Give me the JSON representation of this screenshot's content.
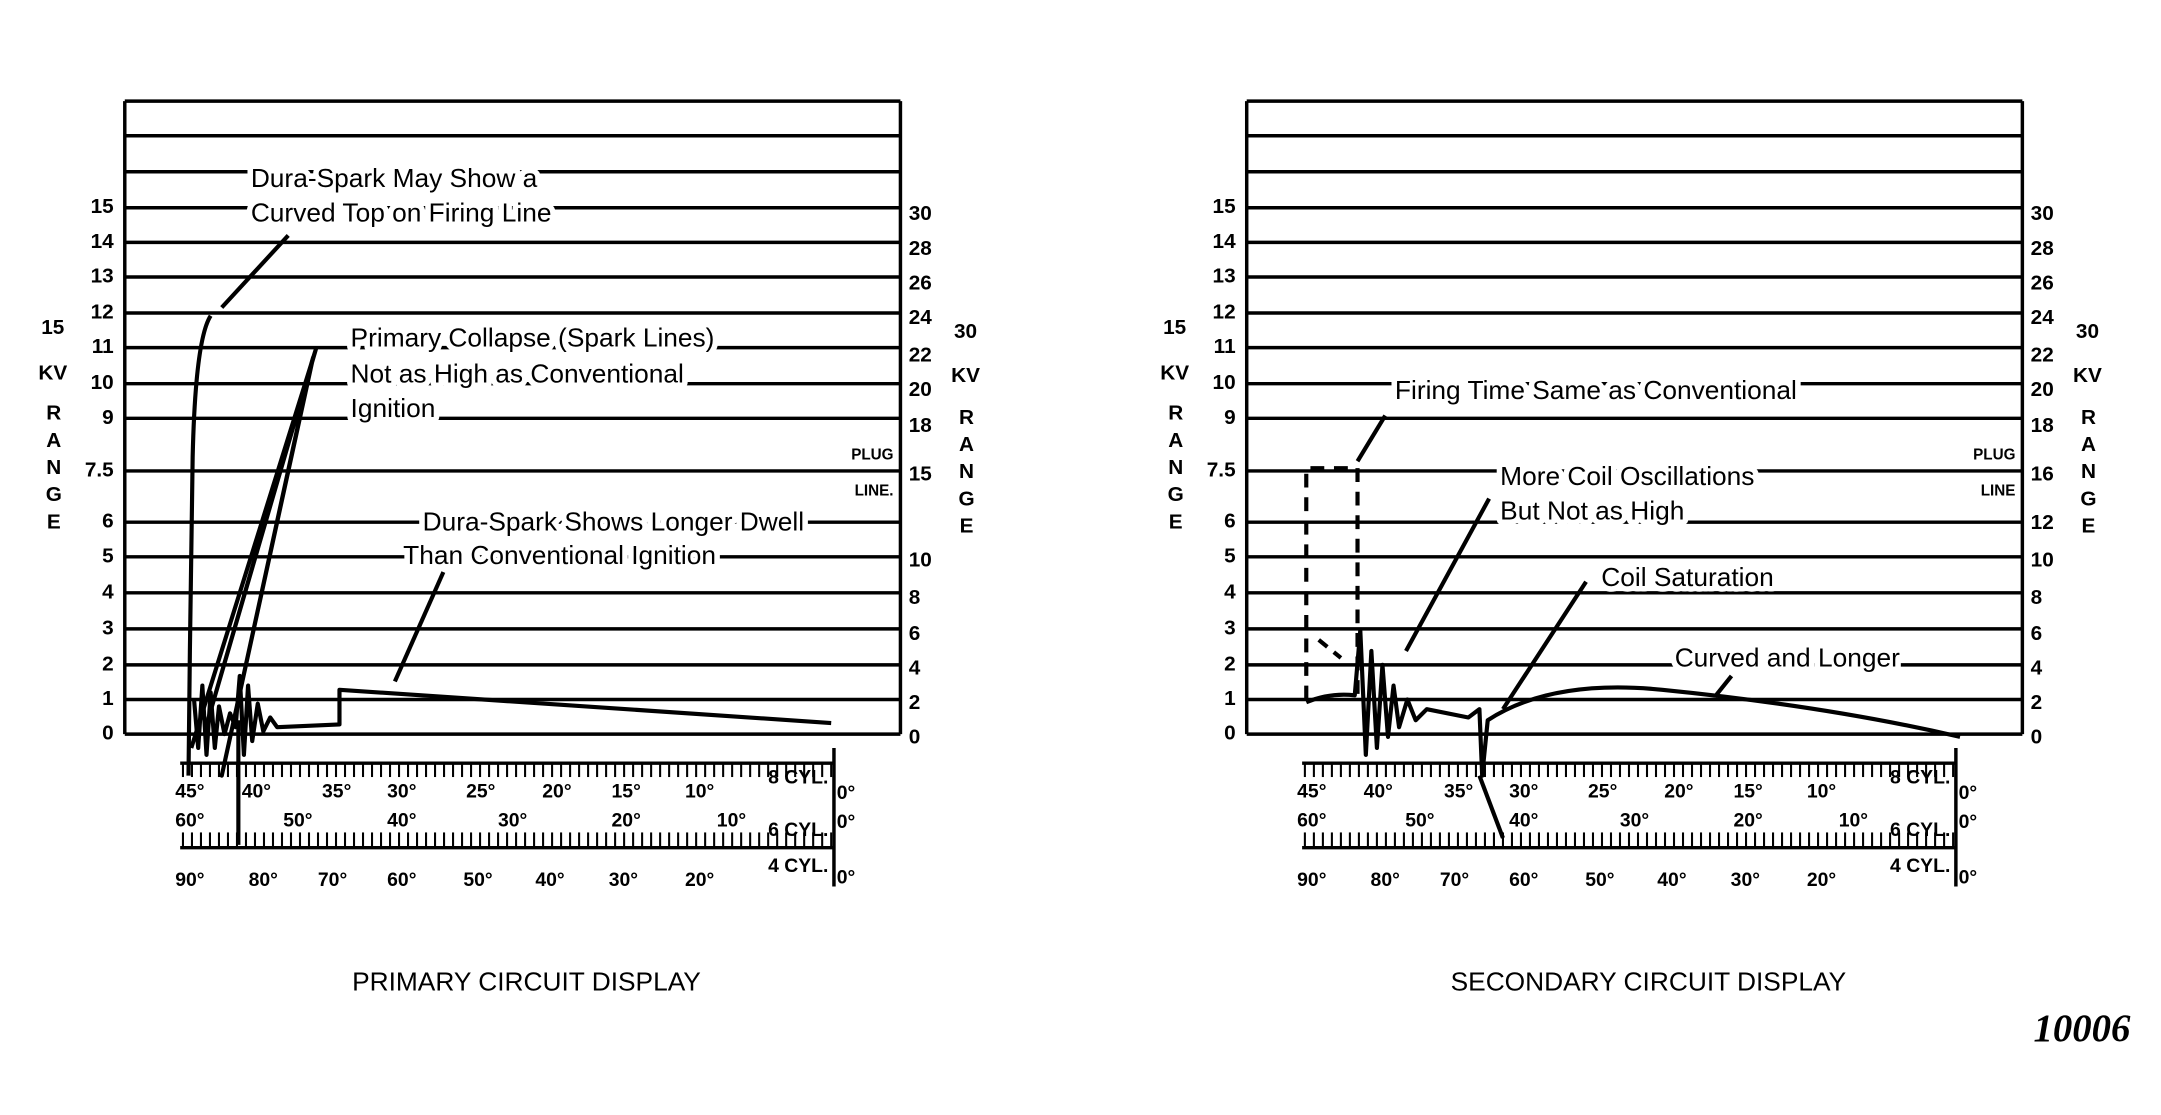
{
  "panels": [
    {
      "caption": "PRIMARY CIRCUIT DISPLAY",
      "left_scale": {
        "range_number": "15",
        "unit": "KV",
        "range_word": "RANGE",
        "labels": [
          "15",
          "14",
          "13",
          "12",
          "11",
          "10",
          "9",
          "7.5",
          "6",
          "5",
          "4",
          "3",
          "2",
          "1",
          "0"
        ]
      },
      "right_scale": {
        "range_number": "30",
        "unit": "KV",
        "range_word": "RANGE",
        "plug": "PLUG",
        "line": "LINE.",
        "labels": [
          "30",
          "28",
          "26",
          "24",
          "22",
          "20",
          "18",
          "15",
          "10",
          "8",
          "6",
          "4",
          "2",
          "0"
        ]
      },
      "annotations": [
        {
          "lines": [
            "Dura-Spark May Show a",
            "Curved Top on Firing Line"
          ]
        },
        {
          "lines": [
            "Primary Collapse (Spark Lines)",
            "Not as High as Conventional",
            "Ignition"
          ]
        },
        {
          "lines": [
            "Dura-Spark Shows Longer Dwell",
            "Than Conventional Ignition"
          ]
        }
      ],
      "degree_scales": [
        {
          "cyl": "8 CYL.",
          "zero": "0°",
          "labels": [
            "45°",
            "40°",
            "35°",
            "30°",
            "25°",
            "20°",
            "15°",
            "10°"
          ]
        },
        {
          "cyl": "6 CYL.",
          "zero": "0°",
          "labels": [
            "60°",
            "50°",
            "40°",
            "30°",
            "20°",
            "10°"
          ]
        },
        {
          "cyl": "4 CYL.",
          "zero": "0°",
          "labels": [
            "90°",
            "80°",
            "70°",
            "60°",
            "50°",
            "40°",
            "30°",
            "20°"
          ]
        }
      ]
    },
    {
      "caption": "SECONDARY CIRCUIT DISPLAY",
      "left_scale": {
        "range_number": "15",
        "unit": "KV",
        "range_word": "RANGE",
        "labels": [
          "15",
          "14",
          "13",
          "12",
          "11",
          "10",
          "9",
          "7.5",
          "6",
          "5",
          "4",
          "3",
          "2",
          "1",
          "0"
        ]
      },
      "right_scale": {
        "range_number": "30",
        "unit": "KV",
        "range_word": "RANGE",
        "plug": "PLUG",
        "line": "LINE",
        "labels": [
          "30",
          "28",
          "26",
          "24",
          "22",
          "20",
          "18",
          "16",
          "12",
          "10",
          "8",
          "6",
          "4",
          "2",
          "0"
        ]
      },
      "annotations": [
        {
          "lines": [
            "Firing Time Same as Conventional"
          ]
        },
        {
          "lines": [
            "More Coil Oscillations",
            "But Not as High"
          ]
        },
        {
          "lines": [
            "Coil Saturation"
          ]
        },
        {
          "lines": [
            "Curved and Longer"
          ]
        }
      ],
      "degree_scales": [
        {
          "cyl": "8 CYL.",
          "zero": "0°",
          "labels": [
            "45°",
            "40°",
            "35°",
            "30°",
            "25°",
            "20°",
            "15°",
            "10°"
          ]
        },
        {
          "cyl": "6 CYL.",
          "zero": "0°",
          "labels": [
            "60°",
            "50°",
            "40°",
            "30°",
            "20°",
            "10°"
          ]
        },
        {
          "cyl": "4 CYL.",
          "zero": "0°",
          "labels": [
            "90°",
            "80°",
            "70°",
            "60°",
            "50°",
            "40°",
            "30°",
            "20°"
          ]
        }
      ]
    }
  ],
  "figure_number": "10006"
}
